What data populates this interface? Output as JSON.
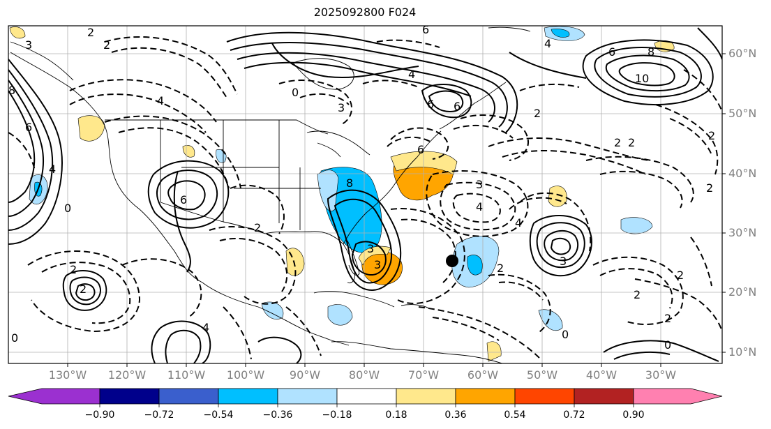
{
  "title": "2025092800 F024",
  "lat_labels": [
    "60°N",
    "50°N",
    "40°N",
    "30°N",
    "20°N",
    "10°N"
  ],
  "lon_labels": [
    "130°W",
    "120°W",
    "110°W",
    "100°W",
    "90°W",
    "80°W",
    "70°W",
    "60°W",
    "50°W",
    "40°W",
    "30°W"
  ],
  "colorbar": {
    "ticks": [
      "−0.90",
      "−0.72",
      "−0.54",
      "−0.36",
      "−0.18",
      "0.18",
      "0.36",
      "0.54",
      "0.72",
      "0.90"
    ],
    "colors": [
      "#9b30d0",
      "#00008b",
      "#3a5fcd",
      "#00bfff",
      "#b0e2ff",
      "#ffffff",
      "#ffe88c",
      "#ffa500",
      "#ff4500",
      "#b22222",
      "#ff80b0"
    ]
  },
  "contour_labels": [
    "6",
    "2",
    "4",
    "8",
    "6",
    "3",
    "4",
    "2",
    "6",
    "6",
    "4",
    "6",
    "8",
    "10",
    "2",
    "3",
    "6",
    "0",
    "2",
    "4",
    "8",
    "6",
    "4",
    "2",
    "0",
    "2",
    "2",
    "2",
    "3",
    "4",
    "3",
    "2",
    "2",
    "2",
    "3",
    "2",
    "3",
    "2",
    "4",
    "2",
    "0",
    "0",
    "0"
  ],
  "marker": "storm-center-dot"
}
